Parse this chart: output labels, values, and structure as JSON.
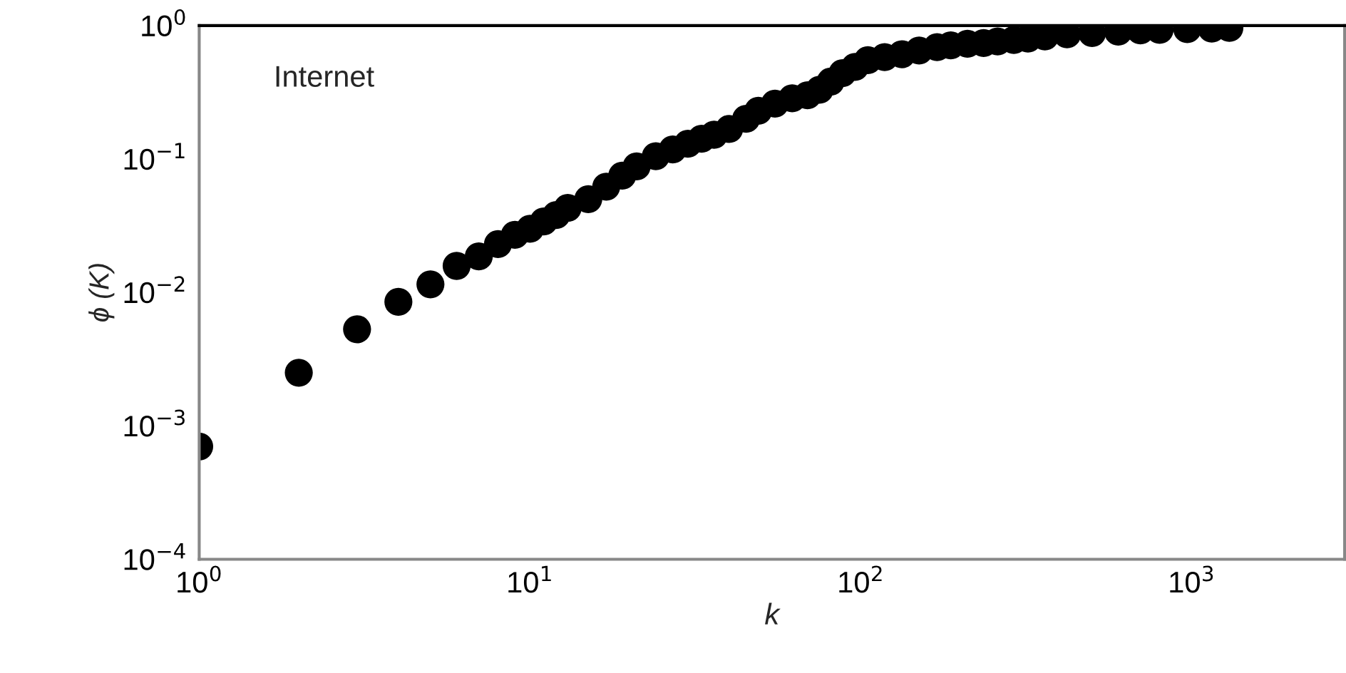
{
  "chart_data": {
    "type": "scatter",
    "xlabel": "k",
    "ylabel": "ϕ (K)",
    "annotations": [
      "Internet"
    ],
    "log": "xy",
    "grid": false,
    "legend": false,
    "marker": "circle",
    "xlim": [
      1,
      2900
    ],
    "ylim": [
      0.0001,
      1
    ],
    "xticks": [
      {
        "value": 1,
        "label": "10$^{0}$"
      },
      {
        "value": 10,
        "label": "10$^{1}$"
      },
      {
        "value": 100,
        "label": "10$^{2}$"
      },
      {
        "value": 1000,
        "label": "10$^{3}$"
      }
    ],
    "yticks": [
      {
        "value": 0.0001,
        "label": "10$^{−4}$"
      },
      {
        "value": 0.001,
        "label": "10$^{−3}$"
      },
      {
        "value": 0.01,
        "label": "10$^{−2}$"
      },
      {
        "value": 0.1,
        "label": "10$^{−1}$"
      },
      {
        "value": 1,
        "label": "10$^{0}$"
      }
    ],
    "series": [
      {
        "color": "#000000",
        "x": [
          1,
          2,
          3,
          4,
          5,
          6,
          7,
          8,
          9,
          10,
          11,
          12,
          13,
          15,
          17,
          19,
          21,
          24,
          27,
          30,
          33,
          36,
          40,
          45,
          49,
          55,
          62,
          69,
          75,
          81,
          88,
          96,
          105,
          118,
          133,
          150,
          170,
          187,
          210,
          235,
          259,
          290,
          320,
          360,
          420,
          500,
          600,
          700,
          800,
          970,
          1150,
          1300
        ],
        "values": [
          0.0007,
          0.0025,
          0.0053,
          0.0085,
          0.0115,
          0.0158,
          0.0186,
          0.023,
          0.027,
          0.03,
          0.034,
          0.038,
          0.043,
          0.05,
          0.062,
          0.075,
          0.088,
          0.105,
          0.118,
          0.13,
          0.142,
          0.152,
          0.168,
          0.2,
          0.23,
          0.26,
          0.285,
          0.3,
          0.33,
          0.38,
          0.44,
          0.49,
          0.55,
          0.58,
          0.61,
          0.65,
          0.69,
          0.71,
          0.73,
          0.74,
          0.76,
          0.78,
          0.8,
          0.83,
          0.86,
          0.88,
          0.9,
          0.92,
          0.93,
          0.94,
          0.95,
          0.96
        ]
      }
    ]
  }
}
